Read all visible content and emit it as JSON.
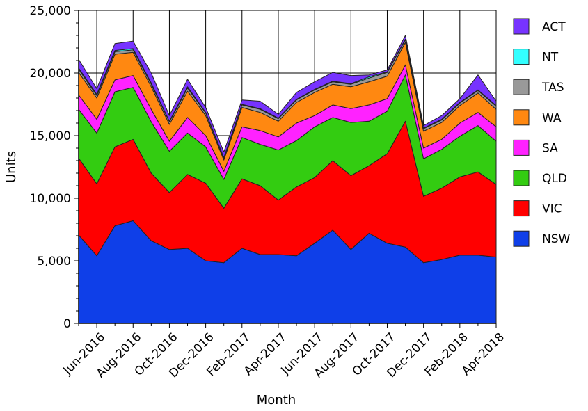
{
  "chart_data": {
    "type": "area",
    "stacked": true,
    "xlabel": "Month",
    "ylabel": "Units",
    "ylim": [
      0,
      25000
    ],
    "y_ticks": [
      "0",
      "5,000",
      "10,000",
      "15,000",
      "20,000",
      "25,000"
    ],
    "x": [
      "May-2016",
      "Jun-2016",
      "Jul-2016",
      "Aug-2016",
      "Sep-2016",
      "Oct-2016",
      "Nov-2016",
      "Dec-2016",
      "Jan-2017",
      "Feb-2017",
      "Mar-2017",
      "Apr-2017",
      "May-2017",
      "Jun-2017",
      "Jul-2017",
      "Aug-2017",
      "Sep-2017",
      "Oct-2017",
      "Nov-2017",
      "Dec-2017",
      "Jan-2018",
      "Feb-2018",
      "Mar-2018",
      "Apr-2018"
    ],
    "x_tick_labels": [
      "Jun-2016",
      "Aug-2016",
      "Oct-2016",
      "Dec-2016",
      "Feb-2017",
      "Apr-2017",
      "Jun-2017",
      "Aug-2017",
      "Oct-2017",
      "Dec-2017",
      "Feb-2018",
      "Apr-2018"
    ],
    "grid": true,
    "legend_position": "right",
    "series": [
      {
        "name": "NSW",
        "color": "#0f3fe8",
        "values": [
          7050,
          5400,
          7800,
          8200,
          6600,
          5900,
          6000,
          5000,
          4850,
          6000,
          5500,
          5500,
          5400,
          6400,
          7450,
          5900,
          7200,
          6400,
          6100,
          4850,
          5100,
          5450,
          5450,
          5300
        ]
      },
      {
        "name": "VIC",
        "color": "#ff0000",
        "values": [
          6150,
          5750,
          6300,
          6500,
          5400,
          4550,
          5900,
          6200,
          4350,
          5550,
          5500,
          4350,
          5500,
          5250,
          5550,
          5900,
          5400,
          7150,
          10050,
          5300,
          5700,
          6250,
          6650,
          5800
        ]
      },
      {
        "name": "QLD",
        "color": "#33cc11",
        "values": [
          3900,
          4050,
          4400,
          4150,
          4100,
          3300,
          3300,
          2900,
          2300,
          3300,
          3300,
          4000,
          3700,
          4050,
          3450,
          4250,
          3550,
          3400,
          3700,
          3000,
          3100,
          3250,
          3700,
          3450
        ]
      },
      {
        "name": "SA",
        "color": "#ff22ff",
        "values": [
          1150,
          1100,
          950,
          950,
          1000,
          800,
          1250,
          900,
          650,
          850,
          1100,
          1050,
          1400,
          900,
          1000,
          1100,
          1300,
          1000,
          800,
          850,
          800,
          1050,
          1050,
          1150
        ]
      },
      {
        "name": "WA",
        "color": "#ff8811",
        "values": [
          1800,
          1700,
          2050,
          1850,
          1800,
          1350,
          2100,
          1600,
          900,
          1550,
          1450,
          1250,
          1650,
          1850,
          1650,
          1750,
          1850,
          1800,
          1800,
          1350,
          1350,
          1400,
          1550,
          1400
        ]
      },
      {
        "name": "TAS",
        "color": "#999999",
        "values": [
          250,
          200,
          200,
          200,
          200,
          200,
          250,
          200,
          150,
          200,
          250,
          200,
          200,
          200,
          200,
          200,
          300,
          300,
          200,
          200,
          200,
          200,
          200,
          250
        ]
      },
      {
        "name": "NT",
        "color": "#33ffff",
        "values": [
          100,
          100,
          100,
          100,
          100,
          50,
          100,
          50,
          50,
          50,
          50,
          50,
          50,
          50,
          50,
          50,
          100,
          50,
          50,
          50,
          50,
          50,
          50,
          50
        ]
      },
      {
        "name": "ACT",
        "color": "#7733ff",
        "values": [
          700,
          450,
          550,
          600,
          800,
          450,
          600,
          400,
          450,
          350,
          600,
          300,
          550,
          600,
          700,
          650,
          150,
          150,
          300,
          200,
          300,
          300,
          1200,
          350
        ]
      }
    ]
  }
}
